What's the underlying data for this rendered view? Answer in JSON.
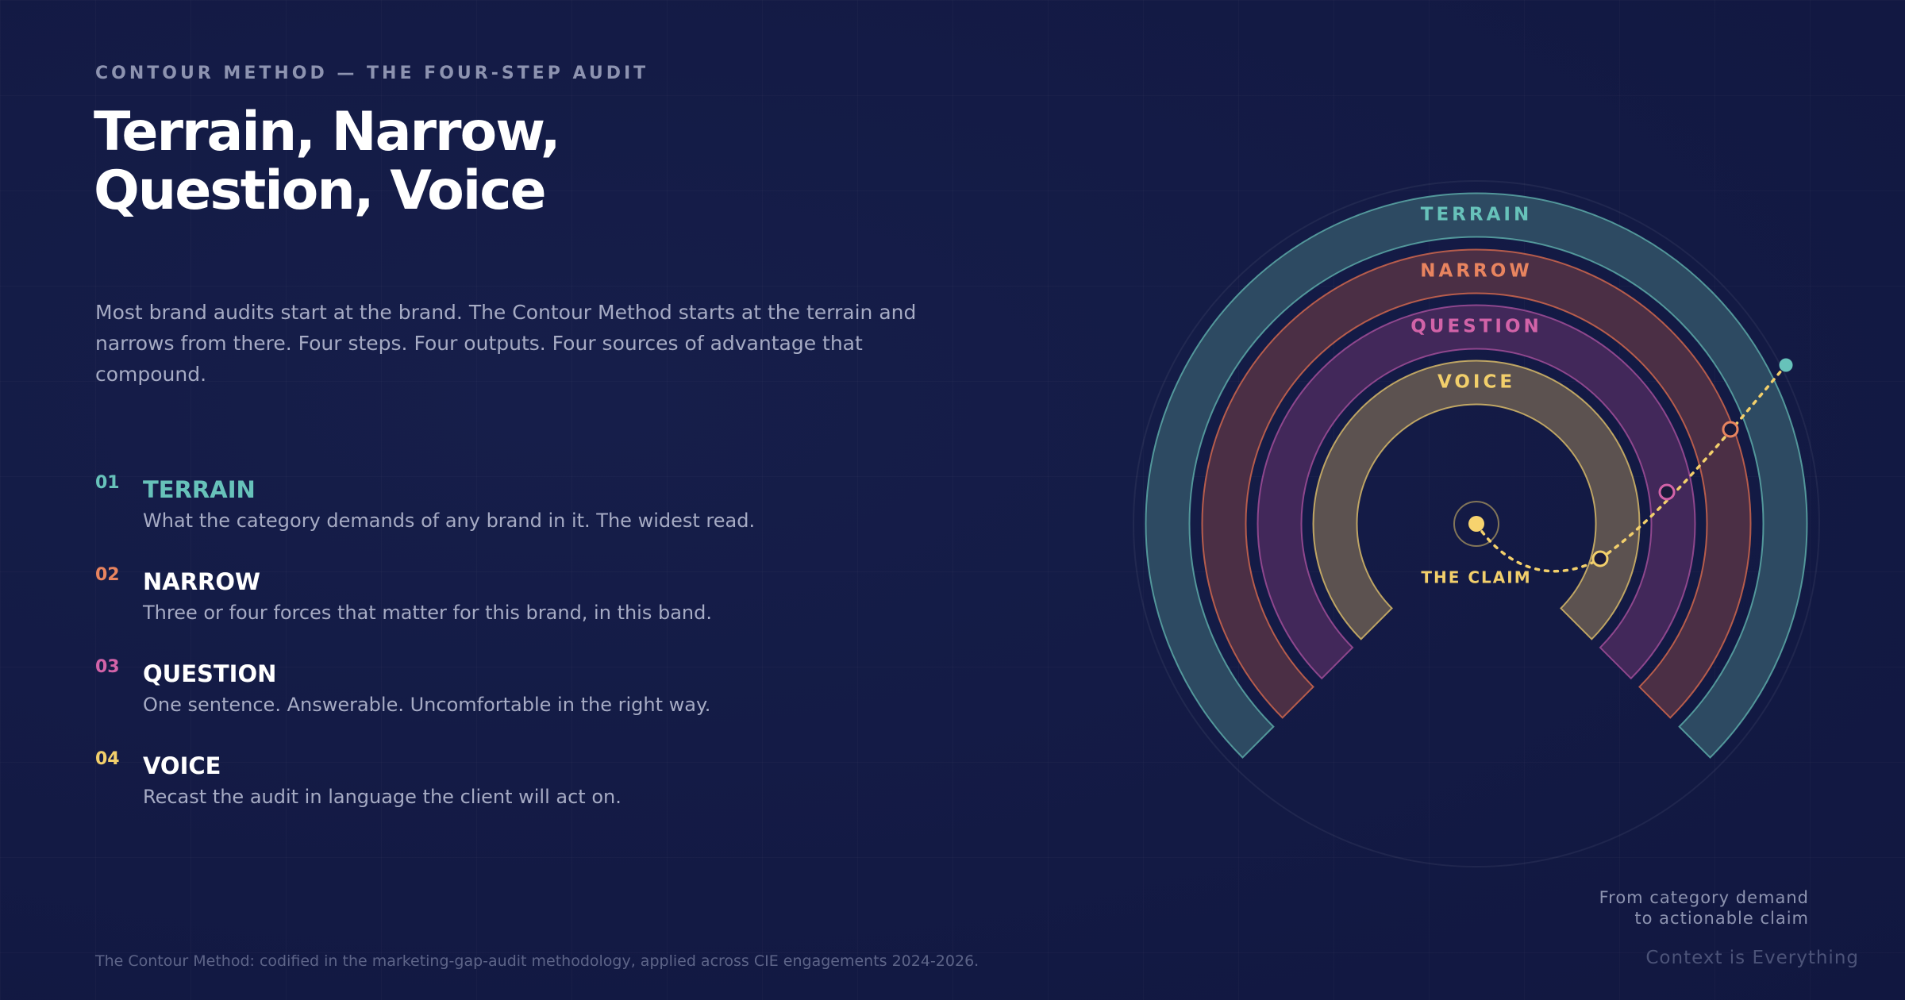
{
  "eyebrow": "CONTOUR METHOD — THE FOUR-STEP AUDIT",
  "title": [
    "Terrain, Narrow,",
    "Question, Voice"
  ],
  "intro": "Most brand audits start at the brand. The Contour Method starts at the terrain and narrows from there. Four steps. Four outputs. Four sources of advantage that compound.",
  "steps": [
    {
      "number": "01",
      "name": "TERRAIN",
      "description": "What the category demands of any brand in it. The widest read."
    },
    {
      "number": "02",
      "name": "NARROW",
      "description": "Three or four forces that matter for this brand, in this band."
    },
    {
      "number": "03",
      "name": "QUESTION",
      "description": "One sentence. Answerable. Uncomfortable in the right way."
    },
    {
      "number": "04",
      "name": "VOICE",
      "description": "Recast the audit in language the client will act on."
    }
  ],
  "diagram": {
    "center_label": "THE CLAIM",
    "caption": [
      "From category demand",
      "to actionable claim"
    ]
  },
  "footer": "The Contour Method: codified in the marketing-gap-audit methodology, applied across CIE engagements 2024-2026.",
  "brand": "Context is Everything"
}
